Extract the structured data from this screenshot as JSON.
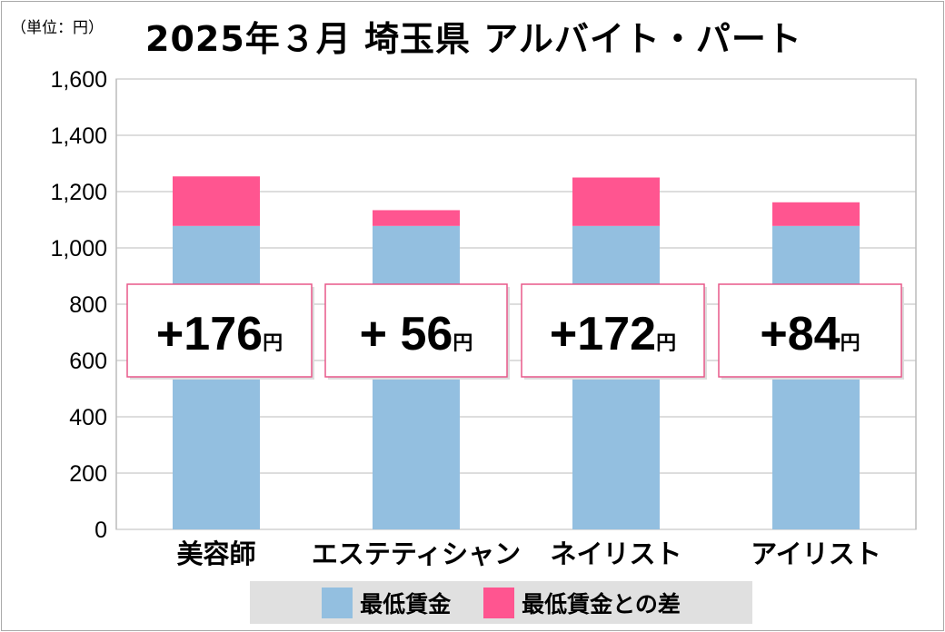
{
  "chart_data": {
    "type": "bar",
    "stacked": true,
    "title": "2025年３月 埼玉県 アルバイト・パート",
    "unit_label": "（単位：円）",
    "categories": [
      "美容師",
      "エステティシャン",
      "ネイリスト",
      "アイリスト"
    ],
    "series": [
      {
        "name": "最低賃金",
        "values": [
          1078,
          1078,
          1078,
          1078
        ],
        "color": "#93bfe0"
      },
      {
        "name": "最低賃金との差",
        "values": [
          176,
          56,
          172,
          84
        ],
        "color": "#ff5590"
      }
    ],
    "data_labels": [
      "+176円",
      "+ 56円",
      "+172円",
      "+84円"
    ],
    "ylim": [
      0,
      1600
    ],
    "yticks": [
      "0",
      "200",
      "400",
      "600",
      "800",
      "1,000",
      "1,200",
      "1,400",
      "1,600"
    ],
    "grid": true,
    "legend_position": "bottom"
  }
}
